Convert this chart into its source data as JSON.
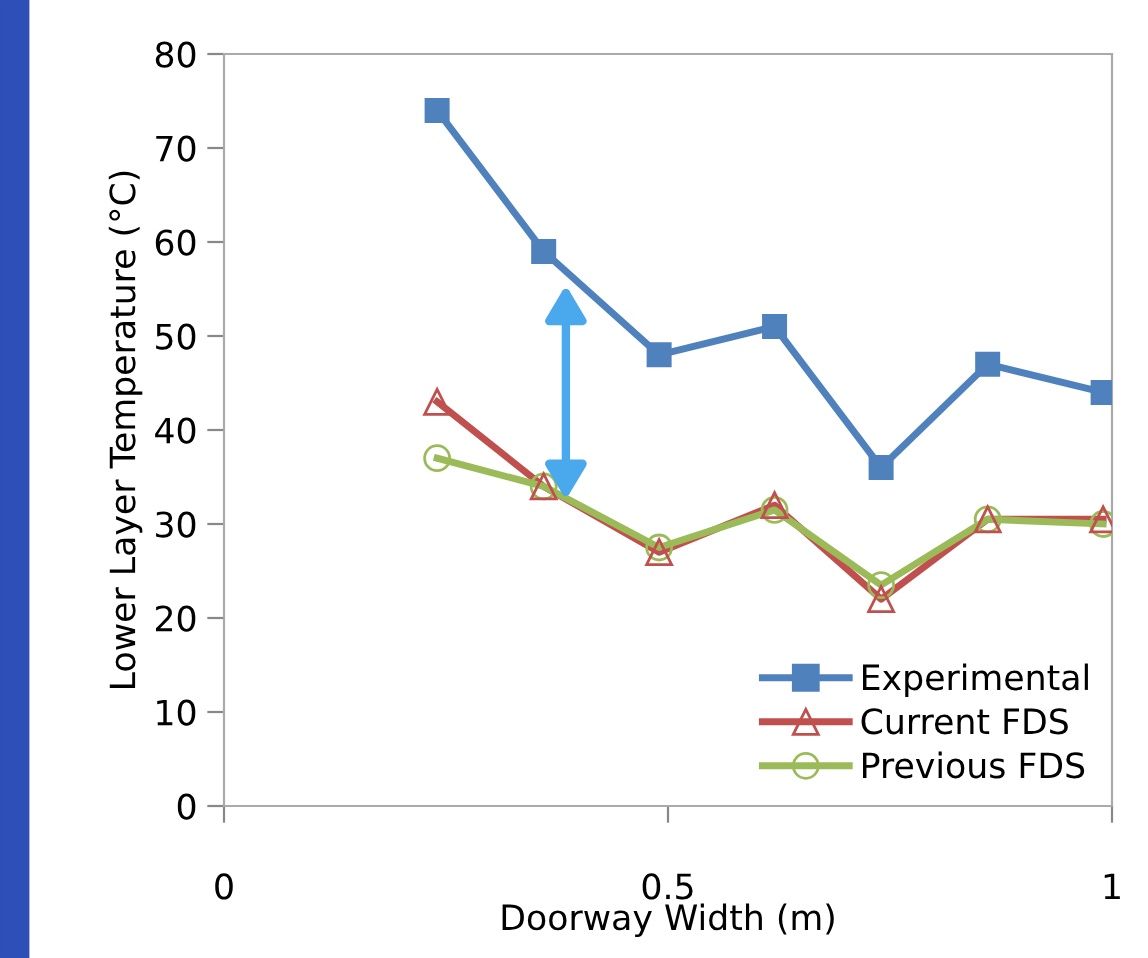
{
  "chart_data": {
    "type": "line",
    "xlabel": "Doorway Width (m)",
    "ylabel": "Lower Layer Temperature (°C)",
    "x": [
      0.24,
      0.36,
      0.49,
      0.62,
      0.74,
      0.86,
      0.99
    ],
    "series": [
      {
        "name": "Experimental",
        "color": "#4f81bd",
        "marker": "square",
        "values": [
          74,
          59,
          48,
          51,
          36,
          47,
          44
        ]
      },
      {
        "name": "Current FDS",
        "color": "#c0504d",
        "marker": "triangle",
        "values": [
          43,
          34,
          27,
          32,
          22,
          30.5,
          30.5
        ]
      },
      {
        "name": "Previous FDS",
        "color": "#9bbb59",
        "marker": "circle",
        "values": [
          37,
          34,
          27.5,
          31.5,
          23.5,
          30.5,
          30
        ]
      }
    ],
    "xlim": [
      0,
      1
    ],
    "xticks": [
      0,
      0.5,
      1
    ],
    "ylim": [
      0,
      80
    ],
    "yticks": [
      0,
      10,
      20,
      30,
      40,
      50,
      60,
      70,
      80
    ],
    "grid": false,
    "legend": "bottom right"
  }
}
